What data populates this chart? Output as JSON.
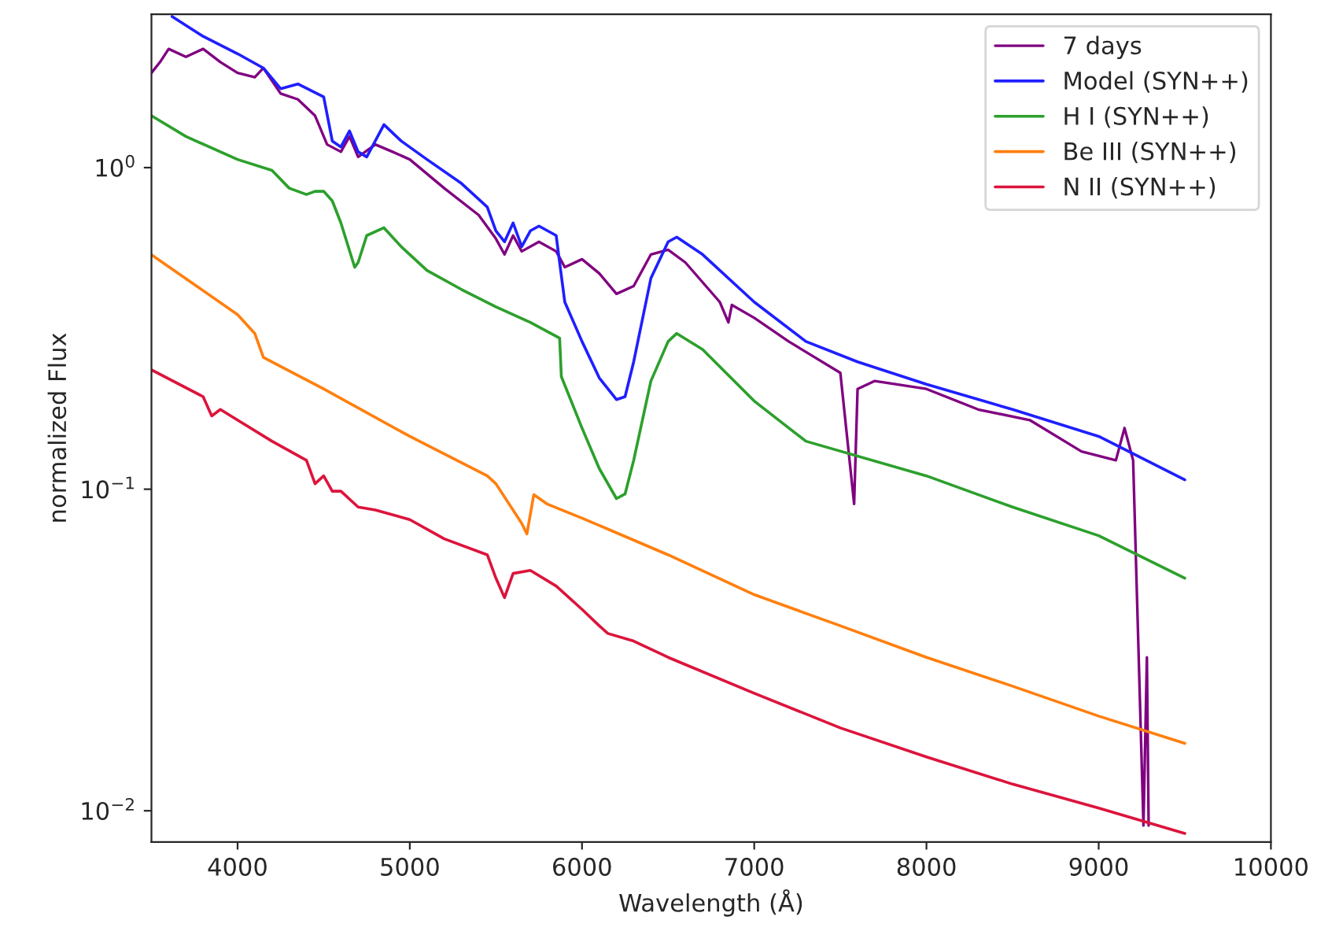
{
  "chart_data": {
    "type": "line",
    "xlabel": "Wavelength (Å)",
    "ylabel": "normalized Flux",
    "log": "y",
    "xlim": [
      3500,
      10000
    ],
    "xticks": [
      4000,
      5000,
      6000,
      7000,
      8000,
      9000,
      10000
    ],
    "ylim": [
      0.008,
      3.0
    ],
    "yticks": [
      {
        "value": 0.01,
        "label": "10$^{−2}$"
      },
      {
        "value": 0.1,
        "label": "10$^{−1}$"
      },
      {
        "value": 1,
        "label": "10$^{0}$"
      }
    ],
    "grid": false,
    "legend": "top right",
    "marker": "none",
    "line_style": "solid",
    "series": [
      {
        "name": "7 days",
        "color": "#800080",
        "x": [
          3500,
          3550,
          3600,
          3700,
          3800,
          3900,
          4000,
          4100,
          4150,
          4250,
          4350,
          4450,
          4520,
          4600,
          4650,
          4700,
          4800,
          4900,
          5000,
          5200,
          5400,
          5500,
          5550,
          5600,
          5650,
          5750,
          5850,
          5900,
          6000,
          6100,
          6200,
          6300,
          6400,
          6500,
          6600,
          6800,
          6850,
          6870,
          7000,
          7200,
          7500,
          7580,
          7600,
          7700,
          8000,
          8300,
          8600,
          8900,
          9100,
          9150,
          9200,
          9260,
          9280,
          9290
        ],
        "values": [
          1.97,
          2.13,
          2.34,
          2.21,
          2.34,
          2.13,
          1.97,
          1.91,
          2.04,
          1.7,
          1.63,
          1.45,
          1.18,
          1.12,
          1.25,
          1.08,
          1.18,
          1.12,
          1.06,
          0.863,
          0.712,
          0.601,
          0.537,
          0.615,
          0.549,
          0.588,
          0.549,
          0.49,
          0.519,
          0.469,
          0.405,
          0.428,
          0.537,
          0.555,
          0.507,
          0.382,
          0.33,
          0.374,
          0.341,
          0.288,
          0.23,
          0.09,
          0.205,
          0.217,
          0.205,
          0.177,
          0.164,
          0.131,
          0.123,
          0.155,
          0.123,
          0.009,
          0.03,
          0.009
        ]
      },
      {
        "name": "Model (SYN++)",
        "color": "#1f1fff",
        "x": [
          3620,
          3800,
          4000,
          4150,
          4250,
          4350,
          4500,
          4550,
          4600,
          4650,
          4700,
          4750,
          4850,
          4950,
          5100,
          5300,
          5450,
          5500,
          5550,
          5600,
          5650,
          5700,
          5750,
          5850,
          5870,
          5900,
          6000,
          6100,
          6200,
          6250,
          6300,
          6400,
          6500,
          6550,
          6700,
          7000,
          7300,
          7600,
          8000,
          8500,
          9000,
          9500
        ],
        "values": [
          2.95,
          2.56,
          2.26,
          2.04,
          1.76,
          1.82,
          1.66,
          1.21,
          1.16,
          1.3,
          1.12,
          1.08,
          1.36,
          1.21,
          1.06,
          0.893,
          0.754,
          0.636,
          0.588,
          0.673,
          0.568,
          0.636,
          0.658,
          0.615,
          0.507,
          0.382,
          0.288,
          0.222,
          0.19,
          0.194,
          0.249,
          0.453,
          0.588,
          0.608,
          0.537,
          0.382,
          0.288,
          0.249,
          0.212,
          0.177,
          0.146,
          0.107
        ]
      },
      {
        "name": "H I (SYN++)",
        "color": "#2ca02c",
        "x": [
          3500,
          3700,
          4000,
          4200,
          4300,
          4400,
          4450,
          4500,
          4550,
          4600,
          4680,
          4700,
          4750,
          4850,
          4950,
          5100,
          5300,
          5500,
          5700,
          5870,
          5880,
          6000,
          6100,
          6200,
          6250,
          6300,
          6400,
          6500,
          6550,
          6700,
          7000,
          7300,
          8000,
          8500,
          9000,
          9500
        ],
        "values": [
          1.45,
          1.25,
          1.06,
          0.98,
          0.863,
          0.825,
          0.844,
          0.844,
          0.788,
          0.673,
          0.49,
          0.507,
          0.615,
          0.65,
          0.568,
          0.479,
          0.418,
          0.369,
          0.33,
          0.295,
          0.224,
          0.155,
          0.116,
          0.0935,
          0.0966,
          0.123,
          0.217,
          0.288,
          0.305,
          0.272,
          0.188,
          0.141,
          0.11,
          0.088,
          0.0717,
          0.0529
        ]
      },
      {
        "name": "Be III (SYN++)",
        "color": "#ff7f0e",
        "x": [
          3500,
          4000,
          4100,
          4150,
          4500,
          5000,
          5450,
          5500,
          5650,
          5680,
          5720,
          5800,
          6000,
          6500,
          7000,
          7500,
          8000,
          8500,
          9000,
          9500
        ],
        "values": [
          0.536,
          0.349,
          0.305,
          0.257,
          0.205,
          0.146,
          0.11,
          0.104,
          0.0783,
          0.0726,
          0.0962,
          0.0898,
          0.0813,
          0.0625,
          0.047,
          0.0376,
          0.03,
          0.0244,
          0.0197,
          0.0162
        ]
      },
      {
        "name": "N II (SYN++)",
        "color": "#dc143c",
        "x": [
          3500,
          3800,
          3850,
          3900,
          4000,
          4200,
          4400,
          4450,
          4500,
          4550,
          4600,
          4700,
          4800,
          5000,
          5200,
          5450,
          5500,
          5550,
          5600,
          5700,
          5850,
          6000,
          6100,
          6150,
          6300,
          6500,
          7000,
          7500,
          8000,
          8500,
          9000,
          9500
        ],
        "values": [
          0.235,
          0.194,
          0.169,
          0.177,
          0.164,
          0.141,
          0.123,
          0.104,
          0.11,
          0.0986,
          0.0986,
          0.088,
          0.0862,
          0.0804,
          0.0701,
          0.0625,
          0.0529,
          0.046,
          0.0547,
          0.0559,
          0.05,
          0.0423,
          0.0376,
          0.0356,
          0.0337,
          0.03,
          0.0232,
          0.0181,
          0.0147,
          0.0121,
          0.0102,
          0.0085
        ]
      }
    ]
  }
}
